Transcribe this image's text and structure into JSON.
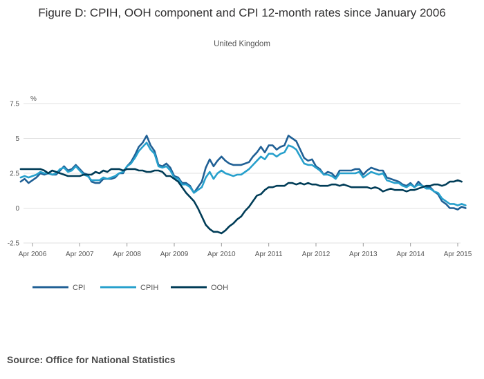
{
  "chart_data": {
    "type": "line",
    "title": "Figure D: CPIH, OOH component and CPI 12-month rates since January 2006",
    "subtitle": "United Kingdom",
    "ylabel": "%",
    "xlabel": "",
    "ylim": [
      -2.5,
      7.5
    ],
    "yticks": [
      "7.5",
      "5",
      "2.5",
      "0",
      "-2.5"
    ],
    "yticks_values": [
      7.5,
      5,
      2.5,
      0,
      -2.5
    ],
    "xticks": [
      "Apr 2006",
      "Apr 2007",
      "Apr 2008",
      "Apr 2009",
      "Apr 2010",
      "Apr 2011",
      "Apr 2012",
      "Apr 2013",
      "Apr 2014",
      "Apr 2015"
    ],
    "grid": true,
    "legend_position": "bottom-left",
    "x_start": "Jan 2006",
    "x_end": "Jul 2015",
    "series": [
      {
        "name": "CPI",
        "color": "#206095",
        "values": [
          1.9,
          2.1,
          1.8,
          2.0,
          2.2,
          2.5,
          2.4,
          2.5,
          2.4,
          2.4,
          2.7,
          3.0,
          2.7,
          2.8,
          3.1,
          2.8,
          2.5,
          2.4,
          1.9,
          1.8,
          1.8,
          2.1,
          2.1,
          2.1,
          2.2,
          2.5,
          2.5,
          3.0,
          3.3,
          3.8,
          4.4,
          4.7,
          5.2,
          4.5,
          4.1,
          3.1,
          3.0,
          3.2,
          2.9,
          2.3,
          2.2,
          1.8,
          1.8,
          1.6,
          1.1,
          1.5,
          1.9,
          2.9,
          3.5,
          3.0,
          3.4,
          3.7,
          3.4,
          3.2,
          3.1,
          3.1,
          3.1,
          3.2,
          3.3,
          3.7,
          4.0,
          4.4,
          4.0,
          4.5,
          4.5,
          4.2,
          4.4,
          4.5,
          5.2,
          5.0,
          4.8,
          4.2,
          3.6,
          3.4,
          3.5,
          3.0,
          2.8,
          2.4,
          2.6,
          2.5,
          2.2,
          2.7,
          2.7,
          2.7,
          2.7,
          2.8,
          2.8,
          2.4,
          2.7,
          2.9,
          2.8,
          2.7,
          2.7,
          2.2,
          2.1,
          2.0,
          1.9,
          1.7,
          1.6,
          1.8,
          1.5,
          1.9,
          1.6,
          1.5,
          1.5,
          1.2,
          1.0,
          0.5,
          0.3,
          0.0,
          0.0,
          -0.1,
          0.1,
          0.0
        ]
      },
      {
        "name": "CPIH",
        "color": "#27a0cc",
        "values": [
          2.2,
          2.3,
          2.2,
          2.3,
          2.4,
          2.6,
          2.5,
          2.5,
          2.4,
          2.5,
          2.8,
          2.9,
          2.6,
          2.7,
          3.0,
          2.7,
          2.4,
          2.3,
          2.0,
          2.0,
          2.0,
          2.2,
          2.1,
          2.2,
          2.3,
          2.5,
          2.6,
          3.0,
          3.2,
          3.6,
          4.1,
          4.4,
          4.7,
          4.2,
          3.9,
          3.0,
          2.9,
          3.0,
          2.7,
          2.2,
          2.1,
          1.7,
          1.7,
          1.5,
          1.1,
          1.3,
          1.5,
          2.2,
          2.6,
          2.1,
          2.5,
          2.7,
          2.5,
          2.4,
          2.3,
          2.4,
          2.4,
          2.6,
          2.8,
          3.1,
          3.4,
          3.7,
          3.5,
          3.9,
          3.9,
          3.7,
          3.9,
          4.0,
          4.5,
          4.4,
          4.2,
          3.7,
          3.2,
          3.1,
          3.1,
          2.9,
          2.7,
          2.4,
          2.4,
          2.3,
          2.1,
          2.5,
          2.5,
          2.5,
          2.5,
          2.5,
          2.6,
          2.2,
          2.4,
          2.6,
          2.5,
          2.4,
          2.5,
          2.0,
          1.9,
          1.8,
          1.8,
          1.6,
          1.5,
          1.7,
          1.5,
          1.7,
          1.6,
          1.4,
          1.4,
          1.2,
          1.1,
          0.7,
          0.5,
          0.3,
          0.3,
          0.2,
          0.3,
          0.2
        ]
      },
      {
        "name": "OOH",
        "color": "#003c57",
        "values": [
          2.8,
          2.8,
          2.8,
          2.8,
          2.8,
          2.8,
          2.7,
          2.5,
          2.7,
          2.6,
          2.5,
          2.4,
          2.3,
          2.3,
          2.3,
          2.3,
          2.4,
          2.4,
          2.4,
          2.6,
          2.5,
          2.7,
          2.6,
          2.8,
          2.8,
          2.8,
          2.7,
          2.8,
          2.8,
          2.8,
          2.7,
          2.7,
          2.6,
          2.6,
          2.7,
          2.7,
          2.6,
          2.3,
          2.3,
          2.1,
          1.9,
          1.5,
          1.1,
          0.8,
          0.5,
          0.0,
          -0.6,
          -1.2,
          -1.5,
          -1.7,
          -1.7,
          -1.8,
          -1.6,
          -1.3,
          -1.1,
          -0.8,
          -0.6,
          -0.2,
          0.1,
          0.5,
          0.9,
          1.0,
          1.3,
          1.5,
          1.5,
          1.6,
          1.6,
          1.6,
          1.8,
          1.8,
          1.7,
          1.8,
          1.7,
          1.8,
          1.7,
          1.7,
          1.6,
          1.6,
          1.6,
          1.7,
          1.7,
          1.6,
          1.7,
          1.6,
          1.5,
          1.5,
          1.5,
          1.5,
          1.5,
          1.4,
          1.5,
          1.4,
          1.2,
          1.3,
          1.4,
          1.3,
          1.3,
          1.3,
          1.2,
          1.3,
          1.3,
          1.4,
          1.5,
          1.6,
          1.6,
          1.7,
          1.7,
          1.6,
          1.7,
          1.9,
          1.9,
          2.0,
          1.9
        ]
      }
    ]
  },
  "source": "Source: Office for National Statistics"
}
